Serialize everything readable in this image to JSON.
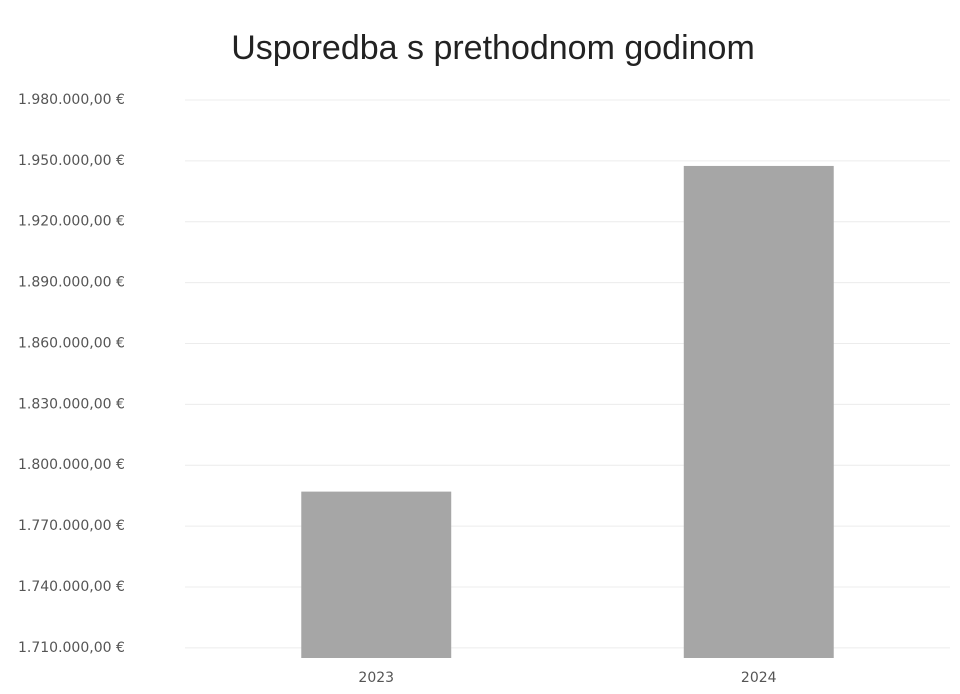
{
  "chart_data": {
    "type": "bar",
    "title": "Usporedba s prethodnom godinom",
    "categories": [
      "2023",
      "2024"
    ],
    "values": [
      1787000,
      1947500
    ],
    "color": "#a6a6a6",
    "ylim": [
      1705000,
      1980000
    ],
    "yticks": [
      {
        "value": 1710000,
        "label": "1.710.000,00 €"
      },
      {
        "value": 1740000,
        "label": "1.740.000,00 €"
      },
      {
        "value": 1770000,
        "label": "1.770.000,00 €"
      },
      {
        "value": 1800000,
        "label": "1.800.000,00 €"
      },
      {
        "value": 1830000,
        "label": "1.830.000,00 €"
      },
      {
        "value": 1860000,
        "label": "1.860.000,00 €"
      },
      {
        "value": 1890000,
        "label": "1.890.000,00 €"
      },
      {
        "value": 1920000,
        "label": "1.920.000,00 €"
      },
      {
        "value": 1950000,
        "label": "1.950.000,00 €"
      },
      {
        "value": 1980000,
        "label": "1.980.000,00 €"
      }
    ],
    "grid": true
  }
}
